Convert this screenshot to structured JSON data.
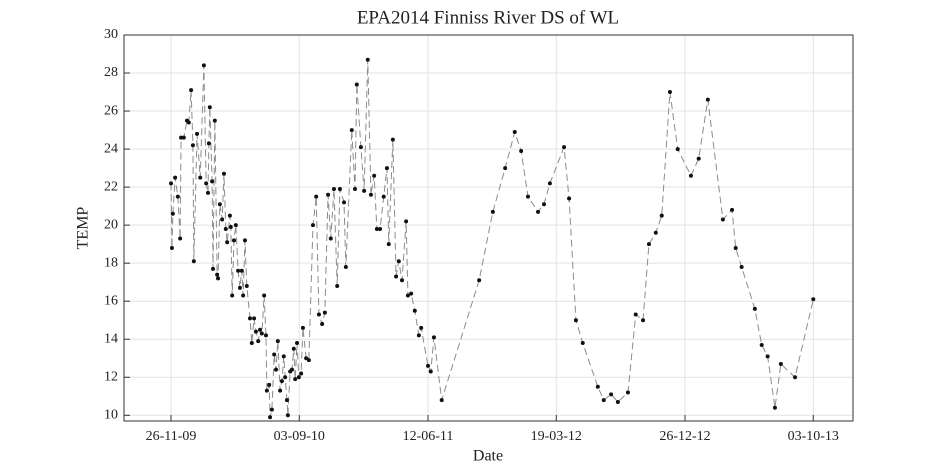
{
  "chart_data": {
    "type": "line",
    "title": "EPA2014 Finniss River DS of WL",
    "x_label": "Date",
    "y_label": "TEMP",
    "x": [
      "2009-11-26",
      "2009-11-28",
      "2009-11-30",
      "2009-12-05",
      "2009-12-11",
      "2009-12-16",
      "2009-12-18",
      "2009-12-24",
      "2009-12-31",
      "2010-01-04",
      "2010-01-09",
      "2010-01-13",
      "2010-01-15",
      "2010-01-22",
      "2010-01-29",
      "2010-02-06",
      "2010-02-11",
      "2010-02-15",
      "2010-02-17",
      "2010-02-19",
      "2010-02-24",
      "2010-02-26",
      "2010-03-02",
      "2010-03-07",
      "2010-03-09",
      "2010-03-13",
      "2010-03-18",
      "2010-03-22",
      "2010-03-26",
      "2010-03-29",
      "2010-04-04",
      "2010-04-06",
      "2010-04-09",
      "2010-04-13",
      "2010-04-17",
      "2010-04-22",
      "2010-04-26",
      "2010-04-30",
      "2010-05-03",
      "2010-05-07",
      "2010-05-11",
      "2010-05-18",
      "2010-05-22",
      "2010-05-27",
      "2010-05-31",
      "2010-06-05",
      "2010-06-09",
      "2010-06-13",
      "2010-06-18",
      "2010-06-22",
      "2010-06-24",
      "2010-06-29",
      "2010-07-01",
      "2010-07-05",
      "2010-07-10",
      "2010-07-14",
      "2010-07-18",
      "2010-07-23",
      "2010-07-27",
      "2010-07-31",
      "2010-08-03",
      "2010-08-07",
      "2010-08-09",
      "2010-08-14",
      "2010-08-18",
      "2010-08-22",
      "2010-08-25",
      "2010-08-29",
      "2010-09-02",
      "2010-09-07",
      "2010-09-11",
      "2010-09-18",
      "2010-09-24",
      "2010-10-03",
      "2010-10-10",
      "2010-10-16",
      "2010-10-23",
      "2010-10-29",
      "2010-11-05",
      "2010-11-11",
      "2010-11-18",
      "2010-11-25",
      "2010-12-01",
      "2010-12-10",
      "2010-12-14",
      "2010-12-27",
      "2011-01-03",
      "2011-01-07",
      "2011-01-16",
      "2011-01-23",
      "2011-01-31",
      "2011-02-07",
      "2011-02-14",
      "2011-02-20",
      "2011-02-27",
      "2011-03-07",
      "2011-03-14",
      "2011-03-18",
      "2011-03-27",
      "2011-04-03",
      "2011-04-09",
      "2011-04-16",
      "2011-04-25",
      "2011-04-29",
      "2011-05-06",
      "2011-05-14",
      "2011-05-23",
      "2011-05-28",
      "2011-06-12",
      "2011-06-18",
      "2011-06-25",
      "2011-07-12",
      "2011-10-02",
      "2011-11-01",
      "2011-11-28",
      "2011-12-19",
      "2012-01-02",
      "2012-01-17",
      "2012-02-08",
      "2012-02-21",
      "2012-03-05",
      "2012-04-05",
      "2012-04-16",
      "2012-05-01",
      "2012-05-16",
      "2012-06-18",
      "2012-07-01",
      "2012-07-17",
      "2012-08-01",
      "2012-08-23",
      "2012-09-09",
      "2012-09-25",
      "2012-10-08",
      "2012-10-23",
      "2012-11-05",
      "2012-11-23",
      "2012-12-10",
      "2013-01-08",
      "2013-01-25",
      "2013-02-14",
      "2013-03-19",
      "2013-04-08",
      "2013-04-16",
      "2013-04-29",
      "2013-05-28",
      "2013-06-12",
      "2013-06-25",
      "2013-07-11",
      "2013-07-24",
      "2013-08-24",
      "2013-10-03"
    ],
    "values": [
      22.2,
      18.8,
      20.6,
      22.5,
      21.5,
      19.3,
      24.6,
      24.6,
      25.5,
      25.4,
      27.1,
      24.2,
      18.1,
      24.8,
      22.5,
      28.4,
      22.2,
      21.7,
      24.3,
      26.2,
      22.3,
      17.7,
      25.5,
      17.4,
      17.2,
      21.1,
      20.3,
      22.7,
      19.8,
      19.1,
      20.5,
      19.9,
      16.3,
      19.2,
      20.0,
      17.6,
      16.7,
      17.6,
      16.3,
      19.2,
      16.8,
      15.1,
      13.8,
      15.1,
      14.4,
      13.9,
      14.5,
      14.3,
      16.3,
      14.2,
      11.3,
      11.6,
      9.9,
      10.3,
      13.2,
      12.4,
      13.9,
      11.3,
      11.8,
      13.1,
      12.0,
      10.8,
      10.0,
      12.3,
      12.4,
      13.5,
      11.9,
      13.8,
      12.0,
      12.2,
      14.6,
      13.0,
      12.9,
      20.0,
      21.5,
      15.3,
      14.8,
      15.4,
      21.6,
      19.3,
      21.9,
      16.8,
      21.9,
      21.2,
      17.8,
      25.0,
      21.9,
      27.4,
      24.1,
      21.8,
      28.7,
      21.6,
      22.6,
      19.8,
      19.8,
      21.5,
      23.0,
      19.0,
      24.5,
      17.3,
      18.1,
      17.1,
      20.2,
      16.3,
      16.4,
      15.5,
      14.2,
      14.6,
      12.6,
      12.3,
      14.1,
      10.8,
      17.1,
      20.7,
      23.0,
      24.9,
      23.9,
      21.5,
      20.7,
      21.1,
      22.2,
      24.1,
      21.4,
      15.0,
      13.8,
      11.5,
      10.8,
      11.1,
      10.7,
      11.2,
      15.3,
      15.0,
      19.0,
      19.6,
      20.5,
      27.0,
      24.0,
      22.6,
      23.5,
      26.6,
      20.3,
      20.8,
      18.8,
      17.8,
      15.6,
      13.7,
      13.1,
      10.4,
      12.7,
      12.0,
      16.1
    ],
    "color": "#8c8c8c",
    "marker_color": "#111111",
    "xlim": [
      "2009-08-15",
      "2013-12-29"
    ],
    "xticks": [
      {
        "value": "2009-11-26",
        "label": "26-11-09"
      },
      {
        "value": "2010-09-03",
        "label": "03-09-10"
      },
      {
        "value": "2011-06-12",
        "label": "12-06-11"
      },
      {
        "value": "2012-03-19",
        "label": "19-03-12"
      },
      {
        "value": "2012-12-26",
        "label": "26-12-12"
      },
      {
        "value": "2013-10-03",
        "label": "03-10-13"
      }
    ],
    "ylim": [
      9.7,
      30
    ],
    "yticks": [
      10,
      12,
      14,
      16,
      18,
      20,
      22,
      24,
      26,
      28,
      30
    ],
    "grid": true
  }
}
